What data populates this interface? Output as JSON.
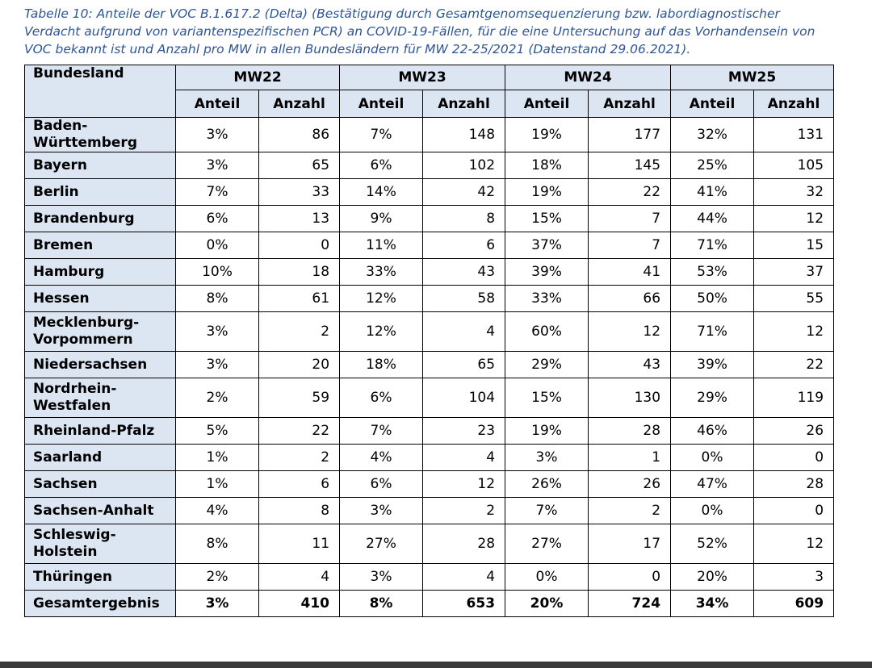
{
  "caption": "Tabelle 10: Anteile der VOC  B.1.617.2 (Delta) (Bestätigung durch Gesamtgenomsequenzierung bzw. labordiagnostischer Verdacht aufgrund von variantenspezifischen PCR) an COVID-19-Fällen, für die eine Untersuchung auf das Vorhandensein von VOC bekannt ist und Anzahl pro MW in allen Bundesländern für MW 22-25/2021 (Datenstand 29.06.2021).",
  "table": {
    "first_header": "Bundesland",
    "groups": [
      "MW22",
      "MW23",
      "MW24",
      "MW25"
    ],
    "subheaders": [
      "Anteil",
      "Anzahl",
      "Anteil",
      "Anzahl",
      "Anteil",
      "Anzahl",
      "Anteil",
      "Anzahl"
    ],
    "rows": [
      [
        "Baden-Württemberg",
        "3%",
        "86",
        "7%",
        "148",
        "19%",
        "177",
        "32%",
        "131"
      ],
      [
        "Bayern",
        "3%",
        "65",
        "6%",
        "102",
        "18%",
        "145",
        "25%",
        "105"
      ],
      [
        "Berlin",
        "7%",
        "33",
        "14%",
        "42",
        "19%",
        "22",
        "41%",
        "32"
      ],
      [
        "Brandenburg",
        "6%",
        "13",
        "9%",
        "8",
        "15%",
        "7",
        "44%",
        "12"
      ],
      [
        "Bremen",
        "0%",
        "0",
        "11%",
        "6",
        "37%",
        "7",
        "71%",
        "15"
      ],
      [
        "Hamburg",
        "10%",
        "18",
        "33%",
        "43",
        "39%",
        "41",
        "53%",
        "37"
      ],
      [
        "Hessen",
        "8%",
        "61",
        "12%",
        "58",
        "33%",
        "66",
        "50%",
        "55"
      ],
      [
        "Mecklenburg-Vorpommern",
        "3%",
        "2",
        "12%",
        "4",
        "60%",
        "12",
        "71%",
        "12"
      ],
      [
        "Niedersachsen",
        "3%",
        "20",
        "18%",
        "65",
        "29%",
        "43",
        "39%",
        "22"
      ],
      [
        "Nordrhein-Westfalen",
        "2%",
        "59",
        "6%",
        "104",
        "15%",
        "130",
        "29%",
        "119"
      ],
      [
        "Rheinland-Pfalz",
        "5%",
        "22",
        "7%",
        "23",
        "19%",
        "28",
        "46%",
        "26"
      ],
      [
        "Saarland",
        "1%",
        "2",
        "4%",
        "4",
        "3%",
        "1",
        "0%",
        "0"
      ],
      [
        "Sachsen",
        "1%",
        "6",
        "6%",
        "12",
        "26%",
        "26",
        "47%",
        "28"
      ],
      [
        "Sachsen-Anhalt",
        "4%",
        "8",
        "3%",
        "2",
        "7%",
        "2",
        "0%",
        "0"
      ],
      [
        "Schleswig-Holstein",
        "8%",
        "11",
        "27%",
        "28",
        "27%",
        "17",
        "52%",
        "12"
      ],
      [
        "Thüringen",
        "2%",
        "4",
        "3%",
        "4",
        "0%",
        "0",
        "20%",
        "3"
      ],
      [
        "Gesamtergebnis",
        "3%",
        "410",
        "8%",
        "653",
        "20%",
        "724",
        "34%",
        "609"
      ]
    ]
  }
}
